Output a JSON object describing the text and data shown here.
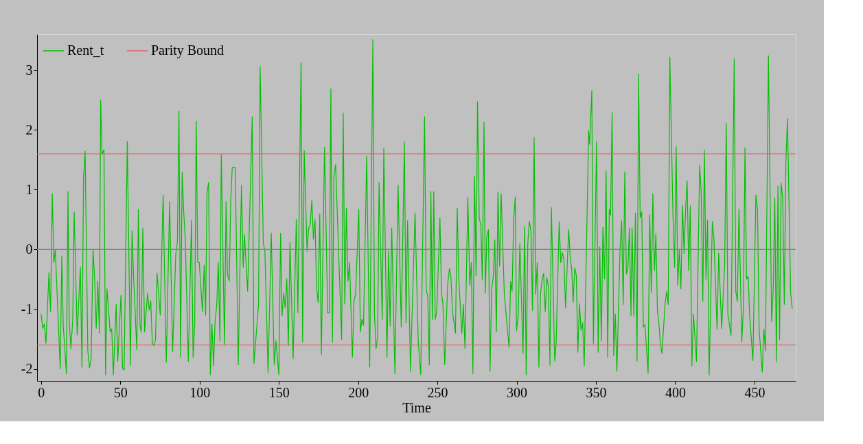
{
  "chart_data": {
    "type": "line",
    "xlabel": "Time",
    "xlim": [
      -2.5,
      476
    ],
    "ylim": [
      -2.2,
      3.6
    ],
    "xticks": [
      0,
      50,
      100,
      150,
      200,
      250,
      300,
      350,
      400,
      450
    ],
    "yticks": [
      -2,
      -1,
      0,
      1,
      2,
      3
    ],
    "grid": false,
    "legend": "top left",
    "marker": "none",
    "line_style": "solid",
    "ref_lines": [
      {
        "axis": "y",
        "value": 0,
        "label": null,
        "color": "#808080"
      },
      {
        "axis": "y",
        "value": 1.6,
        "label": "Parity Bound",
        "color": "#e06060"
      },
      {
        "axis": "y",
        "value": -1.6,
        "label": null,
        "color": "#e06060"
      }
    ],
    "series": [
      {
        "name": "Rent_t",
        "color": "#00c000",
        "x": [
          0,
          1.1,
          2.1,
          3.1,
          5,
          6,
          7.1,
          8.1,
          9,
          12.1,
          13.1,
          14,
          16,
          17,
          17.8,
          18.8,
          20,
          20.9,
          22.8,
          24.8,
          25.8,
          26.8,
          27.8,
          29.5,
          30.6,
          31.6,
          32.8,
          33.8,
          34.8,
          35.8,
          36.8,
          37.6,
          38.5,
          39.7,
          40.7,
          41.6,
          43.6,
          44.6,
          45.6,
          47.4,
          48.4,
          50.4,
          51.4,
          52.4,
          54.4,
          56.4,
          57.4,
          58.4,
          60.4,
          61.4,
          62.4,
          63.2,
          64.2,
          65.3,
          67.2,
          68.2,
          69.2,
          70.2,
          71.2,
          72.2,
          73.2,
          75.2,
          77,
          79,
          81.1,
          83,
          85,
          86,
          87,
          88,
          89,
          90,
          91,
          92.9,
          94.9,
          95.9,
          96.9,
          97.9,
          98.8,
          99.8,
          101.8,
          102.9,
          103.8,
          104.7,
          105.7,
          106.8,
          107.8,
          108.8,
          109.8,
          110.8,
          111.8,
          112.8,
          113.7,
          115.7,
          116.7,
          117.6,
          118.7,
          119.7,
          120.6,
          122.5,
          124.4,
          126.4,
          127.5,
          128.3,
          130.3,
          133.2,
          134.3,
          137.2,
          138.2,
          140.2,
          141.2,
          143.2,
          145.2,
          147.1,
          148.2,
          150,
          151.1,
          152,
          153,
          154,
          155,
          156,
          157,
          159,
          161,
          162,
          164,
          165,
          166,
          167.8,
          168.8,
          169.8,
          170.8,
          171.8,
          172.8,
          173.8,
          174.8,
          175.8,
          176.8,
          178.8,
          180.8,
          181.8,
          182.8,
          183.8,
          184.7,
          185.8,
          189.6,
          190.6,
          191.6,
          192.6,
          193.6,
          194.6,
          196.4,
          197.4,
          198.4,
          200.4,
          201.4,
          202.4,
          203.4,
          205.4,
          207.3,
          209.3,
          210.3,
          211.3,
          212.3,
          213.2,
          215.2,
          216.2,
          218.2,
          219.2,
          220.2,
          221.2,
          223.2,
          225.2,
          227.2,
          229.2,
          230.2,
          231.2,
          233,
          235.9,
          237.9,
          239.5,
          241.9,
          242.9,
          243.9,
          244.9,
          245.9,
          246.8,
          247.7,
          248.6,
          249.6,
          251.6,
          252.6,
          253.5,
          254.6,
          256.5,
          257.6,
          258.5,
          259.5,
          261.4,
          262.5,
          263.5,
          265.4,
          266.4,
          267.4,
          269.2,
          270.4,
          271.4,
          272.4,
          273.4,
          274.4,
          275.3,
          276.4,
          277.4,
          278.3,
          279.4,
          280.2,
          281.2,
          282.2,
          283.2,
          284.2,
          285.2,
          286.2,
          287.2,
          288.2,
          289.2,
          290.2,
          292.2,
          295.2,
          296.2,
          297.1,
          298.1,
          299.1,
          299.9,
          301,
          302,
          304,
          305,
          306,
          307,
          308,
          309,
          310,
          311,
          312,
          313,
          314,
          315,
          316,
          317,
          318,
          319,
          320,
          321,
          321.9,
          324,
          324.9,
          326.8,
          327.8,
          328.8,
          329.8,
          330.8,
          332.8,
          333.8,
          334.7,
          335.6,
          336.6,
          337.6,
          338.6,
          339.6,
          340.6,
          341.6,
          342.6,
          345.4,
          346,
          347.4,
          348.4,
          350.4,
          351.4,
          352.4,
          353.4,
          354.4,
          355.4,
          356.4,
          357.4,
          358.4,
          359.2,
          360.2,
          361.2,
          362.2,
          363.2,
          365.2,
          366.2,
          367.2,
          368.2,
          369.2,
          370.2,
          371.1,
          372.1,
          372.8,
          373.9,
          374.9,
          375.9,
          376.9,
          377.9,
          378.9,
          379.9,
          380.9,
          382.9,
          383.9,
          384.9,
          385.9,
          386.9,
          387.8,
          388.8,
          389.7,
          390.6,
          391.6,
          393.6,
          394.6,
          395.6,
          396.6,
          398.6,
          399.6,
          400.6,
          401.6,
          402.6,
          403.6,
          404.6,
          405.6,
          406.6,
          407.5,
          408.5,
          409.5,
          410.5,
          411.5,
          413.4,
          415.4,
          416.4,
          417.4,
          418.4,
          419.4,
          420.4,
          421.4,
          423.4,
          424.4,
          426.4,
          427.4,
          429.3,
          431.2,
          432.2,
          433.2,
          435.2,
          437.2,
          438.2,
          439.2,
          440.2,
          442,
          443,
          444,
          445,
          446,
          447,
          449,
          450.9,
          451.9,
          452.9,
          454.9,
          455.9,
          456.9,
          458.8,
          460.8,
          461.8,
          462.8,
          463.8,
          464.8,
          465.8,
          466.8,
          467.8,
          468.8,
          469.8,
          470.8,
          472.8,
          473.8
        ],
        "values": [
          -1.08,
          -1.32,
          -1.25,
          -1.57,
          -0.39,
          -1.04,
          0.93,
          -0.22,
          -0.01,
          -2.0,
          -0.11,
          -1.27,
          -2.08,
          0.97,
          -1.19,
          -1.66,
          -1.19,
          0.63,
          -1.43,
          -0.3,
          -1.97,
          1.2,
          1.65,
          -1.7,
          -1.98,
          -1.83,
          -0.01,
          -0.47,
          -1.32,
          -0.53,
          -1.4,
          2.5,
          1.59,
          1.67,
          -2.1,
          -0.66,
          -1.38,
          -1.33,
          -2.1,
          -0.92,
          -1.87,
          -0.77,
          -1.98,
          -2.02,
          1.81,
          -1.94,
          0.31,
          -0.47,
          -1.68,
          0.67,
          -1.27,
          -1.38,
          0.36,
          -1.38,
          -0.73,
          -1.02,
          -0.86,
          -1.57,
          -1.61,
          -1.51,
          -0.4,
          -1.1,
          0.91,
          -1.89,
          0.8,
          -1.71,
          -0.07,
          0.12,
          2.31,
          -1.8,
          1.29,
          0.63,
          0.16,
          -1.88,
          0.49,
          -1.81,
          -1.27,
          2.15,
          -0.21,
          -0.22,
          -1.04,
          -0.26,
          -1.1,
          0.95,
          1.12,
          -2.1,
          -1.25,
          -1.95,
          -1.19,
          -0.94,
          -0.22,
          -1.53,
          1.59,
          -1.59,
          0.8,
          -0.41,
          -0.53,
          0.84,
          1.37,
          1.37,
          -1.93,
          1.07,
          -0.3,
          0.25,
          -0.7,
          2.22,
          -1.91,
          -0.92,
          3.06,
          0.1,
          -0.03,
          -2.06,
          0.27,
          -1.93,
          -1.53,
          -2.1,
          0.27,
          -1.11,
          -0.73,
          -0.98,
          -0.49,
          -1.61,
          0.12,
          -1.83,
          0.5,
          -1.06,
          3.13,
          -1.55,
          1.65,
          -0.03,
          0.36,
          0.42,
          0.82,
          0.17,
          0.5,
          -0.64,
          -0.89,
          0.59,
          -1.76,
          1.71,
          -1.06,
          -1.06,
          2.69,
          -1.55,
          1.22,
          1.42,
          -1.51,
          2.28,
          -0.91,
          0.69,
          -0.53,
          -0.22,
          -1.8,
          -0.86,
          -0.75,
          0.67,
          -1.38,
          -1.17,
          -1.27,
          1.56,
          -1.97,
          3.51,
          -1.08,
          -1.66,
          -1.47,
          1.12,
          -1.17,
          1.69,
          -1.81,
          -0.03,
          -1.28,
          0.36,
          -2.08,
          1.08,
          -1.3,
          1.8,
          -1.23,
          0.48,
          -2.04,
          0.61,
          -1.53,
          -2.1,
          2.22,
          -0.66,
          -0.79,
          -1.93,
          0.97,
          -1.17,
          0.97,
          -1.17,
          -1.04,
          0.53,
          -0.73,
          -0.92,
          -1.93,
          -0.58,
          -0.32,
          -0.45,
          -1.04,
          -1.4,
          0.69,
          -0.49,
          -1.4,
          -0.92,
          -1.66,
          0.87,
          -0.6,
          -0.22,
          -2.08,
          1.23,
          -0.44,
          2.47,
          0.53,
          0.4,
          -0.51,
          2.13,
          -0.73,
          0.23,
          0.33,
          -2.04,
          -0.66,
          -0.47,
          0.16,
          -1.38,
          0.96,
          -0.28,
          0.93,
          -0.75,
          -1.64,
          -0.54,
          -0.7,
          0.48,
          0.88,
          -1.36,
          -1.09,
          0.1,
          -1.74,
          0.38,
          -2.1,
          0.1,
          0.47,
          0.31,
          -1.02,
          1.87,
          -0.75,
          -0.22,
          -1.97,
          -0.75,
          -0.51,
          -0.4,
          -1.04,
          -0.47,
          -0.62,
          -1.94,
          0.7,
          -1.87,
          -1.57,
          0.46,
          -0.22,
          -0.05,
          -0.17,
          -0.98,
          0.33,
          -0.14,
          -0.32,
          -0.89,
          -0.31,
          -0.43,
          -1.72,
          -0.91,
          -1.35,
          -1.23,
          -1.95,
          1.99,
          1.76,
          2.66,
          -1.57,
          1.8,
          -1.72,
          0.04,
          -1.53,
          0.37,
          -0.49,
          1.31,
          -1.81,
          0.67,
          0.57,
          2.29,
          -1.78,
          -1.08,
          -2.04,
          0.01,
          0.48,
          -0.92,
          1.3,
          -0.41,
          -0.3,
          0.36,
          -1.11,
          0.36,
          -1.12,
          0.61,
          -1.87,
          2.93,
          0.53,
          0.63,
          -1.3,
          -1.26,
          -2.07,
          0.58,
          -0.72,
          0.93,
          -0.35,
          0.26,
          -1.04,
          -1.23,
          -1.57,
          -1.74,
          -0.92,
          -0.7,
          -0.92,
          3.22,
          0.55,
          -0.3,
          1.72,
          -0.6,
          0.0,
          -0.66,
          0.74,
          -0.07,
          0.7,
          1.15,
          -0.35,
          0.73,
          -1.95,
          -1.08,
          -1.88,
          1.41,
          0.96,
          -0.87,
          1.66,
          -0.5,
          0.49,
          -2.1,
          0.47,
          0.19,
          -1.34,
          -0.06,
          -1.33,
          -0.24,
          2.11,
          -1.09,
          -1.44,
          3.19,
          -0.7,
          -0.87,
          0.67,
          -1.55,
          -0.96,
          1.7,
          -0.5,
          -0.45,
          -1.13,
          -1.86,
          0.91,
          0.67,
          -1.33,
          -2.05,
          -1.33,
          -1.7,
          3.24,
          -1.21,
          -0.68,
          0.86,
          -1.88,
          1.06,
          -1.51,
          1.11,
          0.86,
          -0.92,
          1.46,
          2.19,
          -0.73,
          -0.99
        ]
      }
    ]
  }
}
